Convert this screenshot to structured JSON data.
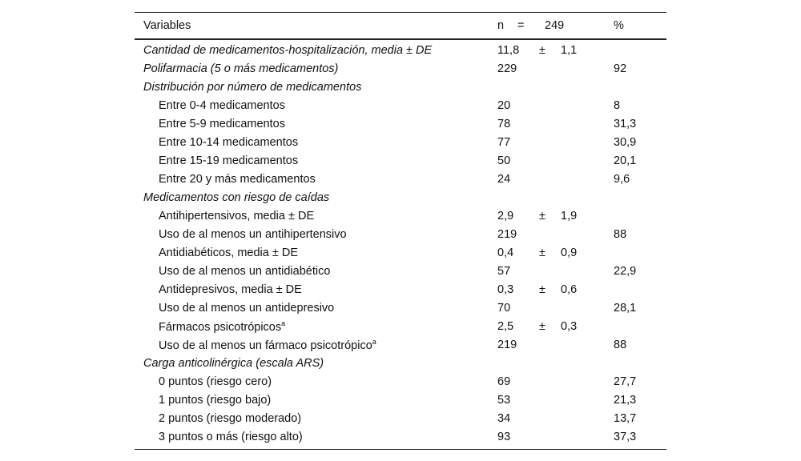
{
  "header": {
    "variables": "Variables",
    "n_label": "n",
    "eq": "=",
    "n_value": "249",
    "pct": "%"
  },
  "rows": [
    {
      "label": "Cantidad de medicamentos-hospitalización, media ± DE",
      "type": "sec",
      "n": "11,8",
      "pm": "±",
      "sd": "1,1",
      "pct": ""
    },
    {
      "label": "Polifarmacia (5 o más medicamentos)",
      "type": "sec",
      "n": "229",
      "pm": "",
      "sd": "",
      "pct": "92"
    },
    {
      "label": "Distribución por número de medicamentos",
      "type": "sec",
      "n": "",
      "pm": "",
      "sd": "",
      "pct": ""
    },
    {
      "label": "Entre 0-4 medicamentos",
      "type": "ind",
      "n": "20",
      "pm": "",
      "sd": "",
      "pct": "8"
    },
    {
      "label": "Entre 5-9 medicamentos",
      "type": "ind",
      "n": "78",
      "pm": "",
      "sd": "",
      "pct": "31,3"
    },
    {
      "label": "Entre 10-14 medicamentos",
      "type": "ind",
      "n": "77",
      "pm": "",
      "sd": "",
      "pct": "30,9"
    },
    {
      "label": "Entre 15-19 medicamentos",
      "type": "ind",
      "n": "50",
      "pm": "",
      "sd": "",
      "pct": "20,1"
    },
    {
      "label": "Entre 20 y más medicamentos",
      "type": "ind",
      "n": "24",
      "pm": "",
      "sd": "",
      "pct": "9,6"
    },
    {
      "label": "Medicamentos con riesgo de caídas",
      "type": "sec",
      "n": "",
      "pm": "",
      "sd": "",
      "pct": ""
    },
    {
      "label": "Antihipertensivos, media ± DE",
      "type": "ind",
      "n": "2,9",
      "pm": "±",
      "sd": "1,9",
      "pct": ""
    },
    {
      "label": "Uso de al menos un antihipertensivo",
      "type": "ind",
      "n": "219",
      "pm": "",
      "sd": "",
      "pct": "88"
    },
    {
      "label": "Antidiabéticos, media ± DE",
      "type": "ind",
      "n": "0,4",
      "pm": "±",
      "sd": "0,9",
      "pct": ""
    },
    {
      "label": "Uso de al menos un antidiabético",
      "type": "ind",
      "n": "57",
      "pm": "",
      "sd": "",
      "pct": "22,9"
    },
    {
      "label": "Antidepresivos, media ± DE",
      "type": "ind",
      "n": "0,3",
      "pm": "±",
      "sd": "0,6",
      "pct": ""
    },
    {
      "label": "Uso de al menos un antidepresivo",
      "type": "ind",
      "n": "70",
      "pm": "",
      "sd": "",
      "pct": "28,1"
    },
    {
      "label": "Fármacos psicotrópicos",
      "sup": "a",
      "type": "ind",
      "n": "2,5",
      "pm": "±",
      "sd": "0,3",
      "pct": ""
    },
    {
      "label": "Uso de al menos un fármaco psicotrópico",
      "sup": "a",
      "type": "ind",
      "n": "219",
      "pm": "",
      "sd": "",
      "pct": "88"
    },
    {
      "label": "Carga anticolinérgica (escala ARS)",
      "type": "sec",
      "n": "",
      "pm": "",
      "sd": "",
      "pct": ""
    },
    {
      "label": "0 puntos (riesgo cero)",
      "type": "ind",
      "n": "69",
      "pm": "",
      "sd": "",
      "pct": "27,7"
    },
    {
      "label": "1 puntos (riesgo bajo)",
      "type": "ind",
      "n": "53",
      "pm": "",
      "sd": "",
      "pct": "21,3"
    },
    {
      "label": "2 puntos (riesgo moderado)",
      "type": "ind",
      "n": "34",
      "pm": "",
      "sd": "",
      "pct": "13,7"
    },
    {
      "label": "3 puntos o más (riesgo alto)",
      "type": "ind",
      "n": "93",
      "pm": "",
      "sd": "",
      "pct": "37,3"
    }
  ]
}
